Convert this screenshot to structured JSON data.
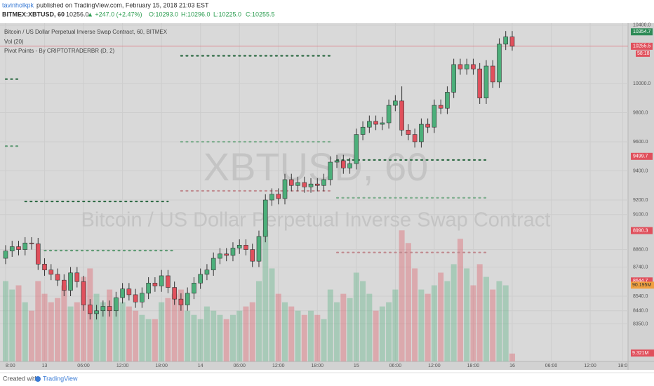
{
  "header": {
    "author": "tavinholkpk",
    "published": "published on TradingView.com, February 15, 2018 21:03 EST"
  },
  "chart_data": {
    "type": "candlestick",
    "symbol": "BITMEX:XBTUSD, 60",
    "last": "10256.0",
    "change": "▲ +247.0 (+2.47%)",
    "ohlc_labels": [
      "O:10293.0",
      "H:10296.0",
      "L:10225.0",
      "C:10255.5"
    ],
    "legend": [
      "Bitcoin / US Dollar Perpetual Inverse Swap Contract, 60, BITMEX",
      "Vol (20)",
      "Pivot Points - By CRIPTOTRADERBR (D, 2)"
    ],
    "watermark": [
      "XBTUSD, 60",
      "Bitcoin / US Dollar Perpetual Inverse Swap Contract"
    ],
    "up_color": "#4caf7a",
    "down_color": "#e0505c",
    "open": [
      8800,
      8850,
      8880,
      8860,
      8905,
      8900,
      8760,
      8720,
      8690,
      8650,
      8580,
      8700,
      8640,
      8480,
      8420,
      8440,
      8470,
      8440,
      8530,
      8590,
      8550,
      8500,
      8560,
      8630,
      8610,
      8680,
      8600,
      8520,
      8480,
      8560,
      8630,
      8690,
      8720,
      8800,
      8830,
      8820,
      8870,
      8890,
      8860,
      8780,
      8950,
      9200,
      9240,
      9210,
      9340,
      9300,
      9320,
      9290,
      9310,
      9300,
      9340,
      9460,
      9470,
      9420,
      9450,
      9650,
      9700,
      9740,
      9720,
      9730,
      9850,
      9880,
      9680,
      9650,
      9600,
      9720,
      9700,
      9850,
      9830,
      9940,
      10130,
      10100,
      10130,
      10100,
      9900,
      10120,
      10010,
      10270,
      10320
    ],
    "high": [
      8890,
      8920,
      8920,
      8945,
      8945,
      8940,
      8800,
      8760,
      8730,
      8690,
      8740,
      8740,
      8680,
      8520,
      8480,
      8510,
      8510,
      8570,
      8630,
      8630,
      8590,
      8600,
      8670,
      8670,
      8720,
      8720,
      8640,
      8560,
      8600,
      8670,
      8730,
      8760,
      8840,
      8870,
      8870,
      8910,
      8930,
      8930,
      8900,
      8990,
      9240,
      9280,
      9280,
      9380,
      9380,
      9360,
      9360,
      9350,
      9350,
      9380,
      9500,
      9510,
      9510,
      9490,
      9690,
      9740,
      9780,
      9780,
      9770,
      9890,
      9920,
      9980,
      9720,
      9690,
      9760,
      9760,
      9890,
      9890,
      9980,
      10170,
      10170,
      10170,
      10170,
      10140,
      10160,
      10160,
      10310,
      10360,
      10360
    ],
    "low": [
      8760,
      8810,
      8820,
      8820,
      8860,
      8720,
      8680,
      8650,
      8610,
      8540,
      8540,
      8600,
      8440,
      8380,
      8380,
      8400,
      8400,
      8400,
      8490,
      8510,
      8460,
      8460,
      8520,
      8570,
      8570,
      8560,
      8480,
      8440,
      8440,
      8520,
      8590,
      8650,
      8680,
      8760,
      8780,
      8780,
      8830,
      8820,
      8740,
      8740,
      8910,
      9160,
      9170,
      9170,
      9260,
      9260,
      9250,
      9250,
      9260,
      9260,
      9300,
      9420,
      9380,
      9380,
      9410,
      9610,
      9660,
      9680,
      9680,
      9690,
      9810,
      9640,
      9610,
      9560,
      9560,
      9660,
      9660,
      9790,
      9790,
      9900,
      10060,
      10060,
      10060,
      9860,
      9860,
      9970,
      9970,
      10230,
      10225
    ],
    "close": [
      8850,
      8880,
      8860,
      8905,
      8900,
      8760,
      8720,
      8690,
      8650,
      8580,
      8700,
      8640,
      8480,
      8420,
      8440,
      8470,
      8440,
      8530,
      8590,
      8550,
      8500,
      8560,
      8630,
      8610,
      8680,
      8600,
      8520,
      8480,
      8560,
      8630,
      8690,
      8720,
      8800,
      8830,
      8820,
      8870,
      8890,
      8860,
      8780,
      8950,
      9200,
      9240,
      9210,
      9340,
      9300,
      9320,
      9290,
      9310,
      9300,
      9340,
      9460,
      9470,
      9420,
      9450,
      9650,
      9700,
      9740,
      9720,
      9730,
      9850,
      9880,
      9680,
      9650,
      9600,
      9720,
      9700,
      9850,
      9830,
      9940,
      10130,
      10100,
      10130,
      10100,
      9900,
      10120,
      10010,
      10270,
      10320,
      10255.5
    ],
    "volume": [
      95,
      85,
      90,
      70,
      60,
      95,
      80,
      70,
      75,
      90,
      65,
      70,
      100,
      110,
      80,
      70,
      85,
      75,
      70,
      65,
      60,
      55,
      50,
      50,
      70,
      75,
      80,
      85,
      60,
      55,
      50,
      65,
      60,
      55,
      50,
      55,
      60,
      65,
      70,
      95,
      155,
      110,
      80,
      70,
      65,
      60,
      55,
      60,
      55,
      50,
      85,
      70,
      80,
      75,
      105,
      95,
      80,
      60,
      65,
      70,
      85,
      155,
      140,
      110,
      85,
      80,
      90,
      105,
      95,
      115,
      145,
      110,
      90,
      115,
      100,
      85,
      95,
      90,
      9.321
    ],
    "volume_lim": [
      0,
      400
    ],
    "ylim": [
      8092,
      10414
    ],
    "yticks": [
      {
        "value": 10400,
        "label": "10400.0"
      },
      {
        "value": 10000,
        "label": "10000.0"
      },
      {
        "value": 9800,
        "label": "9800.0"
      },
      {
        "value": 9600,
        "label": "9600.0"
      },
      {
        "value": 9400,
        "label": "9400.0"
      },
      {
        "value": 9200,
        "label": "9200.0"
      },
      {
        "value": 9100,
        "label": "9100.0"
      },
      {
        "value": 8860,
        "label": "8860.0"
      },
      {
        "value": 8740,
        "label": "8740.0"
      },
      {
        "value": 8540,
        "label": "8540.0"
      },
      {
        "value": 8440,
        "label": "8440.0"
      },
      {
        "value": 8350,
        "label": "8350.0"
      }
    ],
    "xlim": [
      -0.864,
      95.83
    ],
    "xticks": [
      {
        "value": 0,
        "label": "8:00"
      },
      {
        "value": 6,
        "label": "13"
      },
      {
        "value": 12,
        "label": "06:00"
      },
      {
        "value": 18,
        "label": "12:00"
      },
      {
        "value": 24,
        "label": "18:00"
      },
      {
        "value": 30,
        "label": "14"
      },
      {
        "value": 36,
        "label": "06:00"
      },
      {
        "value": 42,
        "label": "12:00"
      },
      {
        "value": 48,
        "label": "18:00"
      },
      {
        "value": 54,
        "label": "15"
      },
      {
        "value": 60,
        "label": "06:00"
      },
      {
        "value": 66,
        "label": "12:00"
      },
      {
        "value": 72,
        "label": "18:00"
      },
      {
        "value": 78,
        "label": "16"
      },
      {
        "value": 84,
        "label": "06:00"
      },
      {
        "value": 90,
        "label": "12:00"
      },
      {
        "value": 95,
        "label": "18:0"
      }
    ],
    "grid": true,
    "pivots": [
      {
        "value": 10030,
        "from": 0,
        "to": 2,
        "color": "#2f6b45"
      },
      {
        "value": 9570,
        "from": 0,
        "to": 2,
        "color": "#5f9a74"
      },
      {
        "value": 9190,
        "from": 3,
        "to": 25,
        "color": "#2f6b45"
      },
      {
        "value": 8853,
        "from": 6,
        "to": 26,
        "color": "#5f9a74"
      },
      {
        "value": 10190,
        "from": 27,
        "to": 50,
        "color": "#2f6b45"
      },
      {
        "value": 9600,
        "from": 27,
        "to": 50,
        "color": "#7fae8f"
      },
      {
        "value": 9263,
        "from": 27,
        "to": 50,
        "color": "#c08a8f"
      },
      {
        "value": 9475,
        "from": 51,
        "to": 74,
        "color": "#2f6b45"
      },
      {
        "value": 9215,
        "from": 51,
        "to": 74,
        "color": "#7fae8f"
      },
      {
        "value": 8840,
        "from": 51,
        "to": 74,
        "color": "#c08a8f"
      }
    ],
    "price_labels": [
      {
        "value": 10354.7,
        "label": "10354.7",
        "color": "#2e8b57"
      },
      {
        "value": 10255.5,
        "label": "10255.5",
        "color": "#e0505c"
      },
      {
        "value": 9499.7,
        "label": "9499.7",
        "color": "#e0505c"
      },
      {
        "value": 8990.3,
        "label": "8990.3",
        "color": "#e0505c"
      },
      {
        "value": 8644.7,
        "label": "8644.7",
        "color": "#e0505c"
      }
    ],
    "countdown": "58:18",
    "volume_labels": [
      {
        "value": 90.195,
        "label": "90.195M",
        "color": "#f0a040"
      },
      {
        "value": 9.321,
        "label": "9.321M",
        "color": "#e0505c"
      }
    ]
  },
  "footer": {
    "created": "Created with",
    "brand": "TradingView"
  }
}
